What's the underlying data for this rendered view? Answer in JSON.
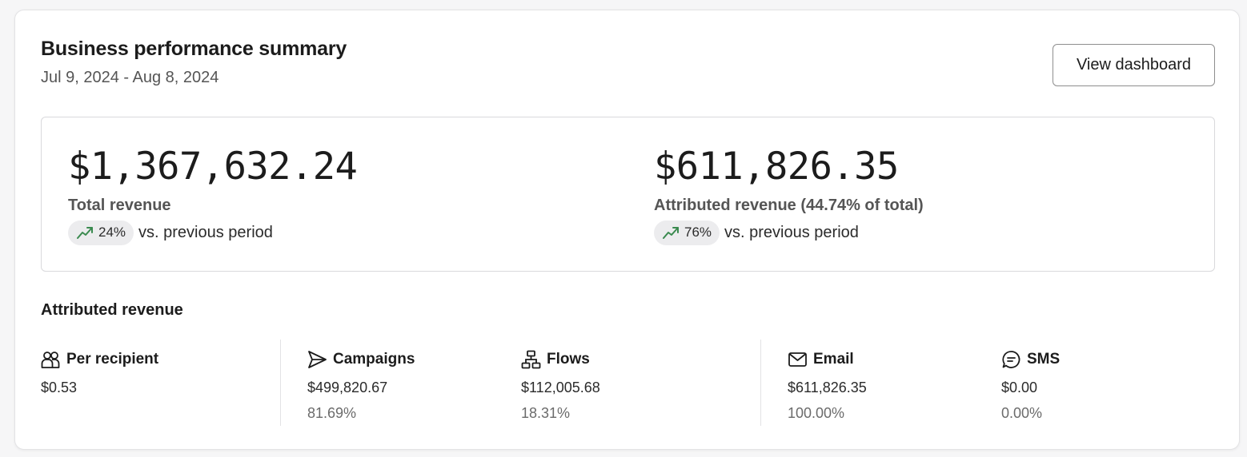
{
  "header": {
    "title": "Business performance summary",
    "date_range": "Jul 9, 2024 - Aug 8, 2024",
    "view_dashboard_label": "View dashboard"
  },
  "summary": {
    "total": {
      "value": "$1,367,632.24",
      "label": "Total revenue",
      "change": "24%",
      "change_icon": "trend-up-icon",
      "comparison": "vs. previous period"
    },
    "attributed": {
      "value": "$611,826.35",
      "label": "Attributed revenue (44.74% of total)",
      "change": "76%",
      "change_icon": "trend-up-icon",
      "comparison": "vs. previous period"
    }
  },
  "attributed_section": {
    "title": "Attributed revenue",
    "stats": [
      {
        "icon": "people-icon",
        "label": "Per recipient",
        "value": "$0.53",
        "percent": ""
      },
      {
        "icon": "send-icon",
        "label": "Campaigns",
        "value": "$499,820.67",
        "percent": "81.69%"
      },
      {
        "icon": "flow-icon",
        "label": "Flows",
        "value": "$112,005.68",
        "percent": "18.31%"
      },
      {
        "icon": "email-icon",
        "label": "Email",
        "value": "$611,826.35",
        "percent": "100.00%"
      },
      {
        "icon": "sms-icon",
        "label": "SMS",
        "value": "$0.00",
        "percent": "0.00%"
      }
    ]
  },
  "colors": {
    "trend_up": "#3a8a4f",
    "pill_bg": "#ececee",
    "border": "#d9d9dc"
  }
}
